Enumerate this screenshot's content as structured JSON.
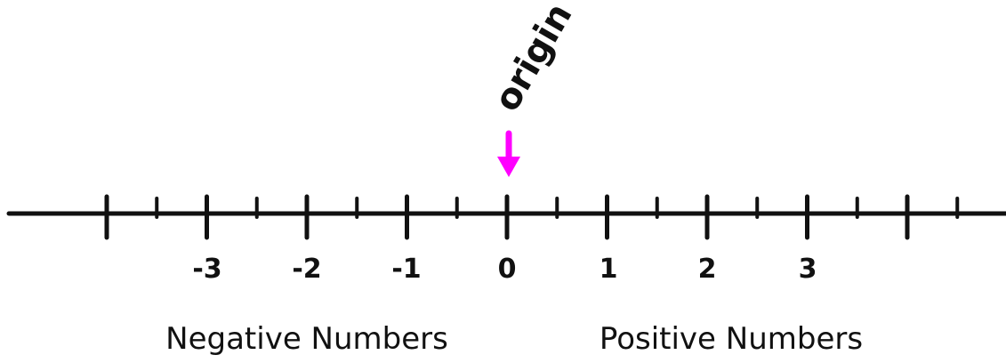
{
  "number_line": {
    "tick_labels": [
      "-3",
      "-2",
      "-1",
      "0",
      "1",
      "2",
      "3"
    ],
    "origin_label": "origin",
    "negative_caption": "Negative Numbers",
    "positive_caption": "Positive Numbers"
  },
  "colors": {
    "line": "#111111",
    "arrow": "#ff00ff",
    "text": "#111111"
  }
}
